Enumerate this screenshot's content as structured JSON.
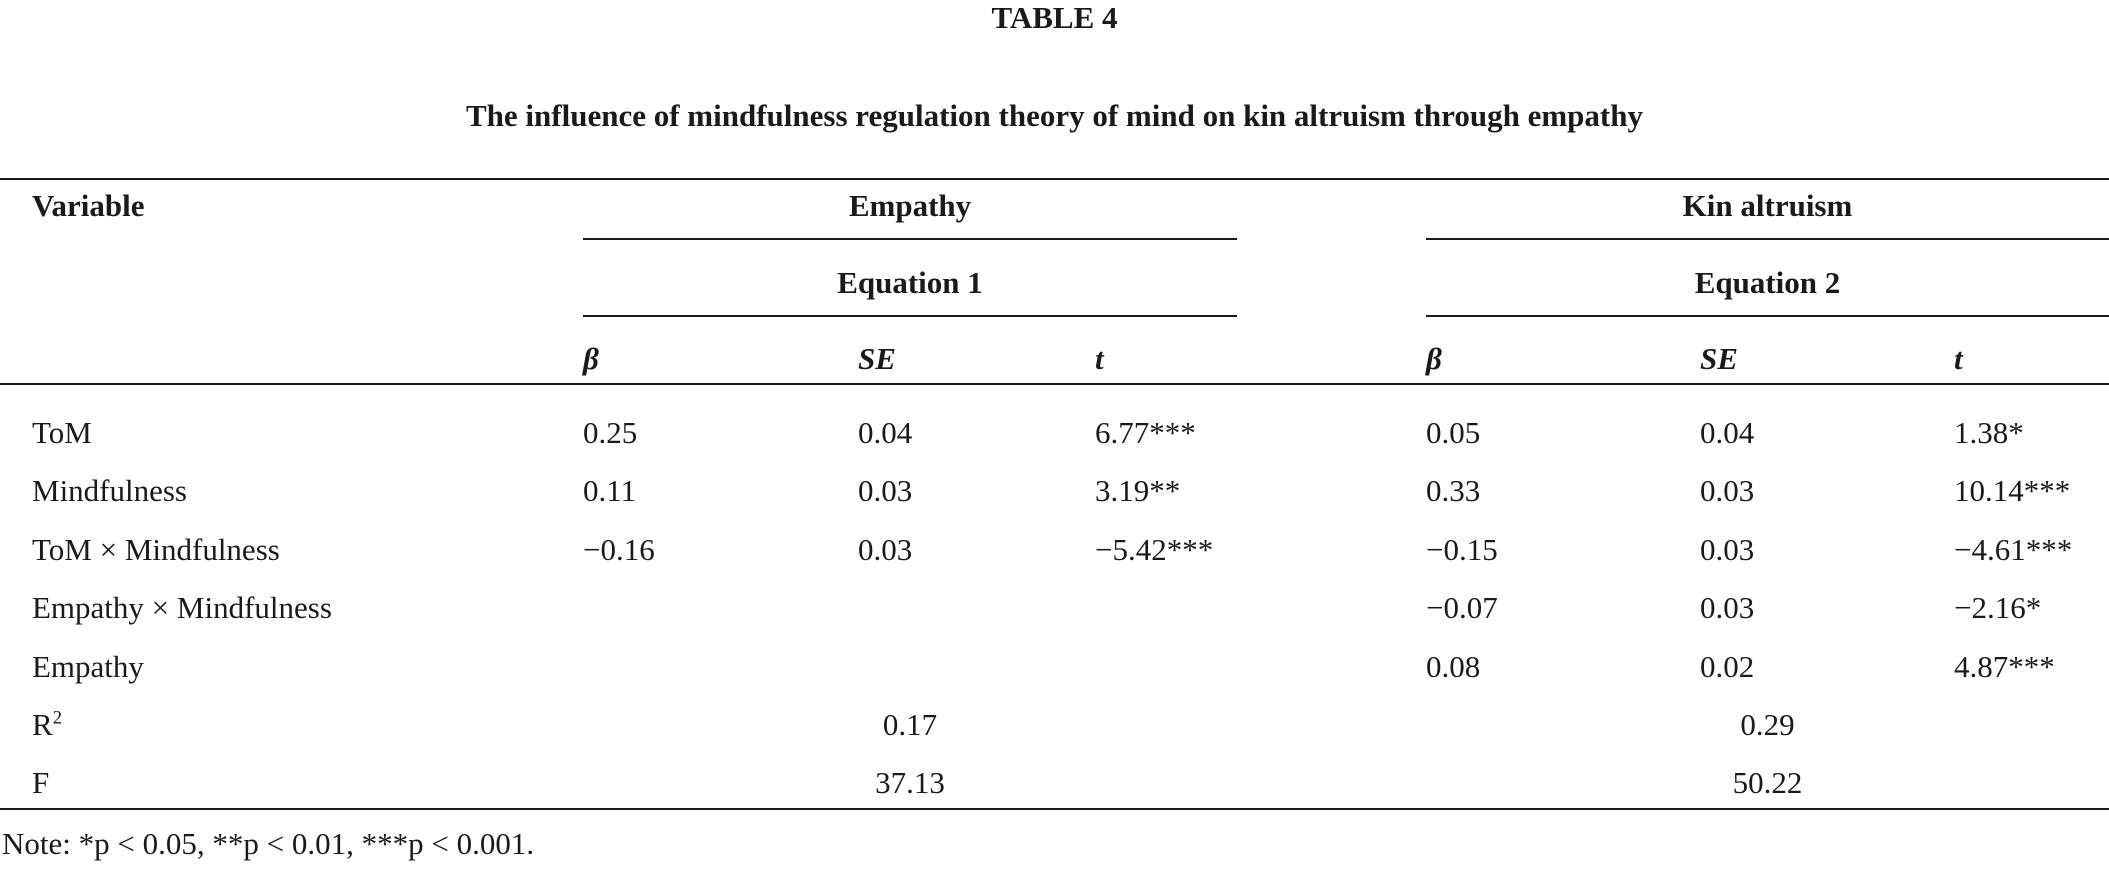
{
  "table": {
    "label": "TABLE 4",
    "caption": "The influence of mindfulness regulation theory of mind on kin altruism through empathy",
    "headers": {
      "variable": "Variable",
      "group1": "Empathy",
      "group1_sub": "Equation 1",
      "group2": "Kin altruism",
      "group2_sub": "Equation 2",
      "beta": "β",
      "se": "SE",
      "t": "t"
    },
    "rows": [
      {
        "variable": "ToM",
        "b1": "0.25",
        "se1": "0.04",
        "t1": "6.77***",
        "b2": "0.05",
        "se2": "0.04",
        "t2": "1.38*"
      },
      {
        "variable": "Mindfulness",
        "b1": "0.11",
        "se1": "0.03",
        "t1": "3.19**",
        "b2": "0.33",
        "se2": "0.03",
        "t2": "10.14***"
      },
      {
        "variable": "ToM × Mindfulness",
        "b1": "−0.16",
        "se1": "0.03",
        "t1": "−5.42***",
        "b2": "−0.15",
        "se2": "0.03",
        "t2": "−4.61***"
      },
      {
        "variable": "Empathy × Mindfulness",
        "b1": "",
        "se1": "",
        "t1": "",
        "b2": "−0.07",
        "se2": "0.03",
        "t2": "−2.16*"
      },
      {
        "variable": "Empathy",
        "b1": "",
        "se1": "",
        "t1": "",
        "b2": "0.08",
        "se2": "0.02",
        "t2": "4.87***"
      }
    ],
    "summary": {
      "r2_label": "R",
      "r2_sup": "2",
      "r2_eq1": "0.17",
      "r2_eq2": "0.29",
      "f_label": "F",
      "f_eq1": "37.13",
      "f_eq2": "50.22"
    },
    "note": "Note: *p < 0.05, **p < 0.01, ***p < 0.001."
  }
}
